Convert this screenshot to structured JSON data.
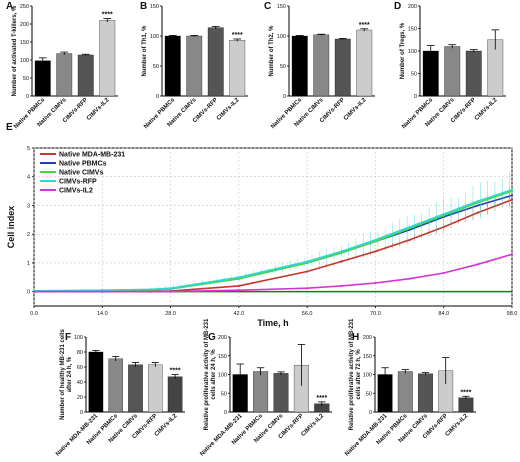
{
  "panel_labels": [
    "A",
    "B",
    "C",
    "D",
    "E",
    "F",
    "G",
    "H"
  ],
  "chart_data": [
    {
      "id": "A",
      "type": "bar",
      "ylabel": "Number of activated T-killers, %",
      "ylim": [
        0,
        250
      ],
      "yticks": [
        0,
        50,
        100,
        150,
        200,
        250
      ],
      "categories": [
        "Native PBMCs",
        "Native CIMVs",
        "CIMVs-RFP",
        "CIMVs-IL2"
      ],
      "values": [
        98,
        118,
        114,
        210
      ],
      "errors": [
        8,
        4,
        2,
        5
      ],
      "colors": [
        "#000000",
        "#888888",
        "#555555",
        "#cccccc"
      ],
      "annotations": [
        "",
        "",
        "",
        "****"
      ]
    },
    {
      "id": "B",
      "type": "bar",
      "ylabel": "Number of Th1, %",
      "ylim": [
        0,
        150
      ],
      "yticks": [
        0,
        50,
        100,
        150
      ],
      "categories": [
        "Native PBMCs",
        "Native CIMVs",
        "CIMVs-RFP",
        "CIMVs-IL2"
      ],
      "values": [
        100,
        100,
        114,
        93
      ],
      "errors": [
        1,
        1,
        2,
        2
      ],
      "colors": [
        "#000000",
        "#888888",
        "#555555",
        "#cccccc"
      ],
      "annotations": [
        "",
        "",
        "",
        "****"
      ]
    },
    {
      "id": "C",
      "type": "bar",
      "ylabel": "Number of Th2, %",
      "ylim": [
        0,
        150
      ],
      "yticks": [
        0,
        50,
        100,
        150
      ],
      "categories": [
        "Native PBMCs",
        "Native CIMVs",
        "CIMVs-RFP",
        "CIMVs-IL2"
      ],
      "values": [
        100,
        102,
        95,
        110
      ],
      "errors": [
        1,
        1,
        1,
        2
      ],
      "colors": [
        "#000000",
        "#888888",
        "#555555",
        "#cccccc"
      ],
      "annotations": [
        "",
        "",
        "",
        "****"
      ]
    },
    {
      "id": "D",
      "type": "bar",
      "ylabel": "Number of Tregs, %",
      "ylim": [
        0,
        200
      ],
      "yticks": [
        0,
        50,
        100,
        150,
        200
      ],
      "categories": [
        "Native PBMCs",
        "Native CIMVs",
        "CIMVs-RFP",
        "CIMVs-IL2"
      ],
      "values": [
        100,
        110,
        100,
        125
      ],
      "errors": [
        12,
        4,
        3,
        22
      ],
      "colors": [
        "#000000",
        "#888888",
        "#555555",
        "#cccccc"
      ],
      "annotations": [
        "",
        "",
        "",
        ""
      ]
    },
    {
      "id": "E",
      "type": "line",
      "xlabel": "Time, h",
      "ylabel": "Cell index",
      "xlim": [
        0,
        98
      ],
      "ylim": [
        -0.5,
        5
      ],
      "xticks": [
        "0.0",
        "14.0",
        "28.0",
        "42.0",
        "56.0",
        "70.0",
        "84.0",
        "98.0"
      ],
      "yticks": [
        0,
        1,
        2,
        3,
        4,
        5
      ],
      "grid": true,
      "legend_position": "top-left",
      "series": [
        {
          "name": "Native MDA-MB-231",
          "color": "#c0392b",
          "x": [
            0,
            14,
            24,
            28,
            42,
            56,
            63,
            70,
            77,
            84,
            91,
            98
          ],
          "y": [
            0,
            0,
            0,
            0.02,
            0.2,
            0.7,
            1.05,
            1.4,
            1.8,
            2.25,
            2.75,
            3.2
          ],
          "err": 0.25
        },
        {
          "name": "Native PBMCs",
          "color": "#1f3fb8",
          "x": [
            0,
            14,
            24,
            28,
            42,
            56,
            63,
            70,
            77,
            84,
            91,
            98
          ],
          "y": [
            0.02,
            0.04,
            0.06,
            0.1,
            0.45,
            1.0,
            1.35,
            1.75,
            2.15,
            2.6,
            3.0,
            3.35
          ],
          "err": 0.15
        },
        {
          "name": "Native CIMVs",
          "color": "#44d944",
          "x": [
            0,
            14,
            24,
            28,
            42,
            56,
            63,
            70,
            77,
            84,
            91,
            98
          ],
          "y": [
            0.02,
            0.04,
            0.06,
            0.1,
            0.45,
            1.0,
            1.35,
            1.75,
            2.2,
            2.65,
            3.1,
            3.5
          ],
          "err": 0.15
        },
        {
          "name": "CIMVs-RFP",
          "color": "#33d6d6",
          "x": [
            0,
            14,
            24,
            28,
            42,
            56,
            63,
            70,
            77,
            84,
            91,
            98
          ],
          "y": [
            0.03,
            0.05,
            0.08,
            0.12,
            0.5,
            1.05,
            1.4,
            1.8,
            2.25,
            2.7,
            3.15,
            3.55
          ],
          "err": 0.7
        },
        {
          "name": "CIMVs-IL2",
          "color": "#d633d6",
          "x": [
            0,
            14,
            24,
            28,
            42,
            56,
            63,
            70,
            77,
            84,
            91,
            98
          ],
          "y": [
            0,
            0,
            0,
            0,
            0.05,
            0.12,
            0.2,
            0.3,
            0.45,
            0.65,
            0.95,
            1.3
          ],
          "err": 0.15
        }
      ]
    },
    {
      "id": "F",
      "type": "bar",
      "ylabel": "Number of healthy MB-231 cells after 24 h, %",
      "ylim": [
        0,
        100
      ],
      "yticks": [
        0,
        20,
        40,
        60,
        80,
        100
      ],
      "categories": [
        "Native MDA-MB-231",
        "Native PBMCs",
        "Native CIMVs",
        "CIMVs-RFP",
        "CIMVs-IL2"
      ],
      "values": [
        80,
        71,
        63,
        63,
        47
      ],
      "errors": [
        2,
        3,
        3,
        3,
        3
      ],
      "colors": [
        "#000000",
        "#888888",
        "#555555",
        "#cccccc",
        "#444444"
      ],
      "annotations": [
        "",
        "",
        "",
        "",
        "****"
      ]
    },
    {
      "id": "G",
      "type": "bar",
      "ylabel": "Relative proliferative activity of MB-231 cells after 24 h, %",
      "ylim": [
        0,
        200
      ],
      "yticks": [
        0,
        50,
        100,
        150,
        200
      ],
      "categories": [
        "Native MDA-MB-231",
        "Native PBMCs",
        "Native CIMVs",
        "CIMVs-RFP",
        "CIMVs-IL2"
      ],
      "values": [
        100,
        108,
        103,
        125,
        22
      ],
      "errors": [
        28,
        10,
        4,
        55,
        5
      ],
      "colors": [
        "#000000",
        "#888888",
        "#555555",
        "#cccccc",
        "#444444"
      ],
      "annotations": [
        "",
        "",
        "",
        "",
        "****"
      ]
    },
    {
      "id": "H",
      "type": "bar",
      "ylabel": "Relative proliferative activity of MB-231 cells after 72 h, %",
      "ylim": [
        0,
        200
      ],
      "yticks": [
        0,
        50,
        100,
        150,
        200
      ],
      "categories": [
        "Native MDA-MB-231",
        "Native PBMCs",
        "Native CIMVs",
        "CIMVs-RFP",
        "CIMVs-IL2"
      ],
      "values": [
        100,
        108,
        102,
        110,
        38
      ],
      "errors": [
        18,
        5,
        3,
        35,
        4
      ],
      "colors": [
        "#000000",
        "#888888",
        "#555555",
        "#cccccc",
        "#444444"
      ],
      "annotations": [
        "",
        "",
        "",
        "",
        "****"
      ]
    }
  ]
}
